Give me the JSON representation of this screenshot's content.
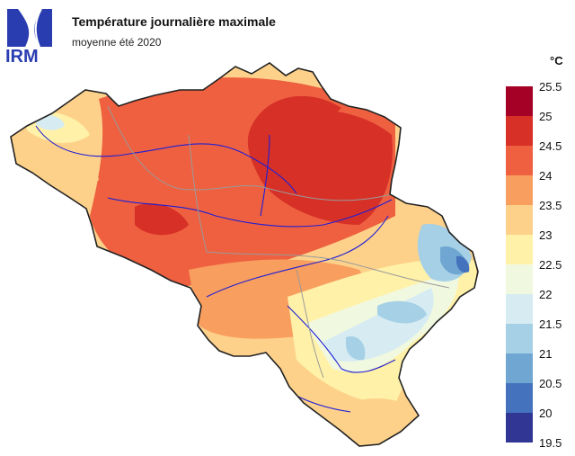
{
  "header": {
    "logo_text": "IRM",
    "title": "Température journalière maximale",
    "subtitle": "moyenne été 2020"
  },
  "legend": {
    "unit": "°C",
    "ticks": [
      "25.5",
      "25",
      "24.5",
      "24",
      "23.5",
      "23",
      "22.5",
      "22",
      "21.5",
      "21",
      "20.5",
      "20",
      "19.5"
    ],
    "colors": [
      "#a50026",
      "#d73027",
      "#ee6040",
      "#f89e5e",
      "#fdd18a",
      "#fff1a8",
      "#f1f8e0",
      "#d6ecf2",
      "#a6d0e6",
      "#6fa6d2",
      "#4472bd",
      "#313695"
    ]
  }
}
